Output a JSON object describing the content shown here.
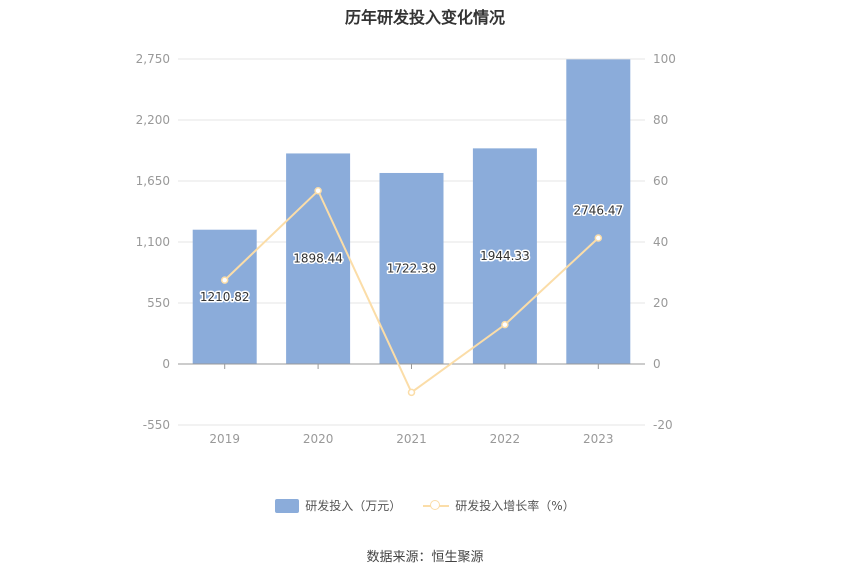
{
  "chart_data": {
    "type": "bar",
    "title": "历年研发投入变化情况",
    "categories": [
      "2019",
      "2020",
      "2021",
      "2022",
      "2023"
    ],
    "series": [
      {
        "name": "研发投入（万元）",
        "type": "bar",
        "axis": "left",
        "values": [
          1210.82,
          1898.44,
          1722.39,
          1944.33,
          2746.47
        ],
        "labels": [
          "1210.82",
          "1898.44",
          "1722.39",
          "1944.33",
          "2746.47"
        ]
      },
      {
        "name": "研发投入增长率（%）",
        "type": "line",
        "axis": "right",
        "values": [
          27.5,
          56.8,
          -9.3,
          12.9,
          41.3
        ]
      }
    ],
    "y_left": {
      "ticks": [
        "2,750",
        "2,200",
        "1,650",
        "1,100",
        "550",
        "0",
        "-550"
      ],
      "range": [
        -550,
        2750
      ]
    },
    "y_right": {
      "ticks": [
        "100",
        "80",
        "60",
        "40",
        "20",
        "0",
        "-20"
      ],
      "range": [
        -20,
        100
      ]
    },
    "grid": true,
    "legend_position": "bottom",
    "colors": {
      "bar": "#8BACDA",
      "line": "#FBDDA8"
    },
    "source": "数据来源：恒生聚源"
  }
}
